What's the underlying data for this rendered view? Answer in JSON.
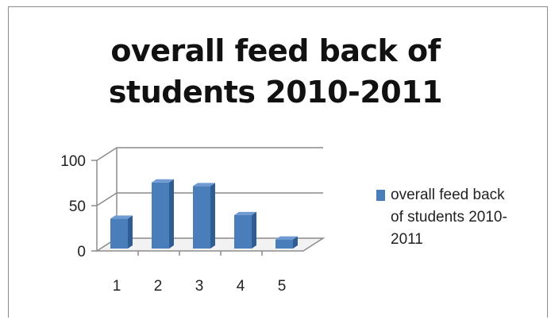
{
  "chart_data": {
    "type": "bar",
    "title_lines": [
      "overall feed back of",
      "students 2010-2011"
    ],
    "categories": [
      "1",
      "2",
      "3",
      "4",
      "5"
    ],
    "series": [
      {
        "name": "overall feed back of students 2010-2011",
        "values": [
          33,
          73,
          69,
          37,
          10
        ]
      }
    ],
    "y_ticks": [
      "0",
      "50",
      "100"
    ],
    "ylim": [
      0,
      100
    ],
    "grid": true,
    "legend_position": "right",
    "style": "3d-column",
    "bar_color": "#4a7ebb"
  },
  "legend": {
    "lines": [
      "overall feed back",
      "of students 2010-",
      "2011"
    ]
  }
}
